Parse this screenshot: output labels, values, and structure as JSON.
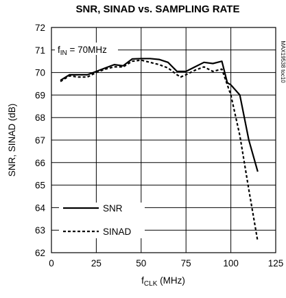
{
  "chart_data": {
    "type": "line",
    "title": "SNR, SINAD vs. SAMPLING RATE",
    "xlabel": {
      "base": "f",
      "sub": "CLK",
      "rest": " (MHz)"
    },
    "ylabel": "SNR, SINAD (dB)",
    "xlim": [
      0,
      125
    ],
    "ylim": [
      62,
      72
    ],
    "xticks": [
      "0",
      "25",
      "50",
      "75",
      "100",
      "125"
    ],
    "yticks": [
      "62",
      "63",
      "64",
      "65",
      "66",
      "67",
      "68",
      "69",
      "70",
      "71",
      "72"
    ],
    "grid": true,
    "annotation": {
      "base": "f",
      "sub": "IN",
      "rest": " = 70MHz"
    },
    "side_id": "MAX19538 toc10",
    "legend_placement": "bottom-left",
    "series": [
      {
        "name": "SNR",
        "style": "solid",
        "x": [
          5,
          10,
          15,
          20,
          25,
          30,
          35,
          40,
          45,
          50,
          55,
          60,
          65,
          70,
          75,
          80,
          85,
          90,
          95,
          98,
          100,
          105,
          110,
          115
        ],
        "y": [
          69.65,
          69.9,
          69.9,
          69.9,
          70.05,
          70.2,
          70.35,
          70.3,
          70.6,
          70.62,
          70.62,
          70.58,
          70.45,
          70.05,
          70.05,
          70.25,
          70.45,
          70.4,
          70.5,
          69.55,
          69.45,
          69.0,
          67.0,
          65.6
        ]
      },
      {
        "name": "SINAD",
        "style": "dashed",
        "x": [
          5,
          10,
          15,
          20,
          25,
          30,
          35,
          40,
          45,
          50,
          55,
          60,
          65,
          70,
          72,
          75,
          80,
          85,
          90,
          95,
          100,
          105,
          110,
          115
        ],
        "y": [
          69.6,
          69.85,
          69.8,
          69.8,
          70.0,
          70.15,
          70.25,
          70.25,
          70.5,
          70.55,
          70.45,
          70.35,
          70.2,
          69.9,
          69.8,
          69.9,
          70.1,
          70.25,
          70.05,
          70.15,
          69.0,
          67.2,
          64.8,
          62.5
        ]
      }
    ]
  }
}
